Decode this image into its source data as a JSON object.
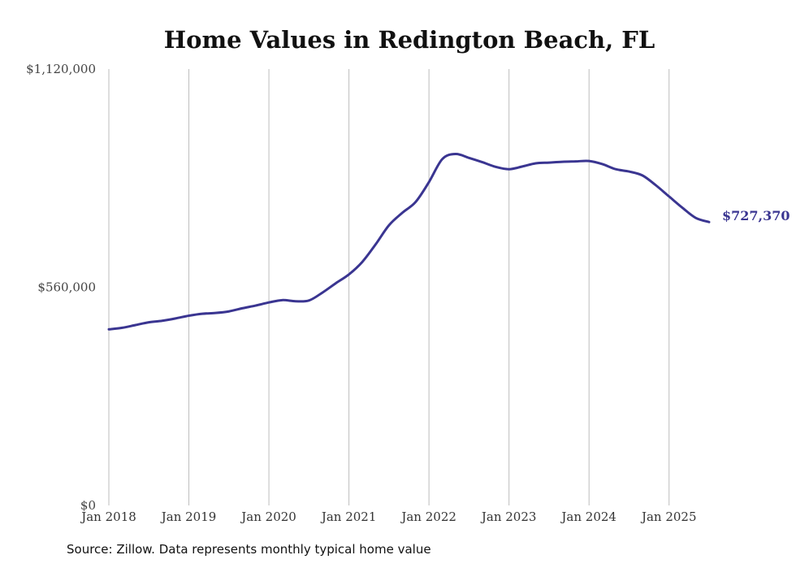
{
  "chart_data": {
    "type": "line",
    "title": "Home Values in Redington Beach, FL",
    "xlabel": "",
    "ylabel": "",
    "ylim": [
      0,
      1120000
    ],
    "yticks": [
      0,
      560000,
      1120000
    ],
    "ytick_labels": [
      "$0",
      "$560,000",
      "$1,120,000"
    ],
    "xlim": [
      "2018-01",
      "2025-07"
    ],
    "xticks": [
      "2018-01",
      "2019-01",
      "2020-01",
      "2021-01",
      "2022-01",
      "2023-01",
      "2024-01",
      "2025-01"
    ],
    "xtick_labels": [
      "Jan 2018",
      "Jan 2019",
      "Jan 2020",
      "Jan 2021",
      "Jan 2022",
      "Jan 2023",
      "Jan 2024",
      "Jan 2025"
    ],
    "grid": "vertical",
    "legend": "none",
    "end_label": "$727,370",
    "series": [
      {
        "color": "#3a3591",
        "x": [
          "2018-01",
          "2018-03",
          "2018-05",
          "2018-07",
          "2018-09",
          "2018-11",
          "2019-01",
          "2019-03",
          "2019-05",
          "2019-07",
          "2019-09",
          "2019-11",
          "2020-01",
          "2020-03",
          "2020-05",
          "2020-07",
          "2020-09",
          "2020-11",
          "2021-01",
          "2021-03",
          "2021-05",
          "2021-07",
          "2021-09",
          "2021-11",
          "2022-01",
          "2022-03",
          "2022-05",
          "2022-07",
          "2022-09",
          "2022-11",
          "2023-01",
          "2023-03",
          "2023-05",
          "2023-07",
          "2023-09",
          "2023-11",
          "2024-01",
          "2024-03",
          "2024-05",
          "2024-07",
          "2024-09",
          "2024-11",
          "2025-01",
          "2025-03",
          "2025-05",
          "2025-07"
        ],
        "values": [
          452000,
          456000,
          463000,
          470000,
          474000,
          480000,
          487000,
          492000,
          494000,
          498000,
          506000,
          513000,
          521000,
          527000,
          524000,
          526000,
          546000,
          570000,
          593000,
          625000,
          670000,
          719000,
          751000,
          779000,
          830000,
          889000,
          902000,
          892000,
          881000,
          869000,
          863000,
          870000,
          878000,
          880000,
          882000,
          883000,
          884000,
          876000,
          863000,
          857000,
          847000,
          822000,
          793000,
          764000,
          738000,
          727370
        ]
      }
    ]
  },
  "footer": {
    "source": "Source: Zillow. Data represents monthly typical home value"
  }
}
